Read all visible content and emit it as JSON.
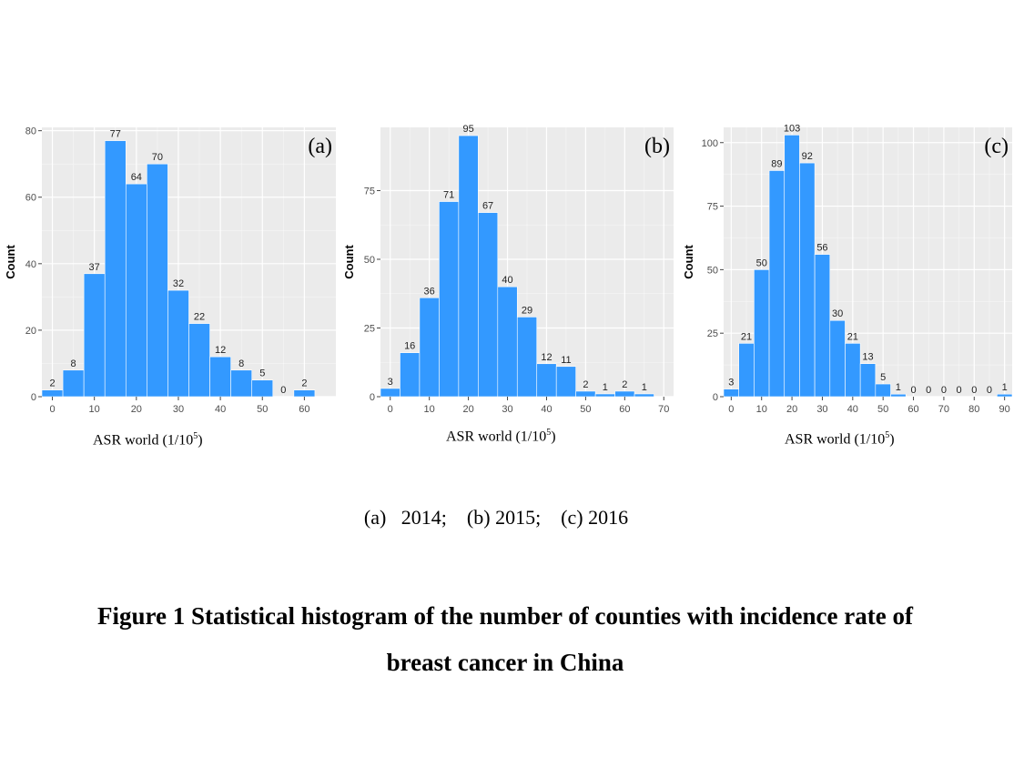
{
  "chart_data": [
    {
      "type": "bar",
      "panel_label": "(a)",
      "ylabel": "Count",
      "xlabel_main": "ASR world (1/10",
      "xlabel_sup": "5",
      "xlabel_end": ")",
      "bin_start": 0,
      "bin_width": 5,
      "values": [
        2,
        8,
        37,
        77,
        64,
        70,
        32,
        22,
        12,
        8,
        5,
        0,
        2
      ],
      "xticks": [
        0,
        10,
        20,
        30,
        40,
        50,
        60
      ],
      "yticks": [
        0,
        20,
        40,
        60,
        80
      ],
      "xlim": [
        -2.5,
        67.5
      ],
      "ylim": [
        0,
        81
      ],
      "bar_color": "#3399ff",
      "grid": true
    },
    {
      "type": "bar",
      "panel_label": "(b)",
      "ylabel": "Count",
      "xlabel_main": "ASR world (1/10",
      "xlabel_sup": "5",
      "xlabel_end": ")",
      "bin_start": 0,
      "bin_width": 5,
      "values": [
        3,
        16,
        36,
        71,
        95,
        67,
        40,
        29,
        12,
        11,
        2,
        1,
        2,
        1
      ],
      "xticks": [
        0,
        10,
        20,
        30,
        40,
        50,
        60,
        70
      ],
      "yticks": [
        0,
        25,
        50,
        75
      ],
      "xlim": [
        -2.5,
        72.5
      ],
      "ylim": [
        0,
        98
      ],
      "bar_color": "#3399ff",
      "grid": true
    },
    {
      "type": "bar",
      "panel_label": "(c)",
      "ylabel": "Count",
      "xlabel_main": "ASR world (1/10",
      "xlabel_sup": "5",
      "xlabel_end": ")",
      "bin_start": 0,
      "bin_width": 5,
      "values": [
        3,
        21,
        50,
        89,
        103,
        92,
        56,
        30,
        21,
        13,
        5,
        1,
        0,
        0,
        0,
        0,
        0,
        0,
        1
      ],
      "xticks": [
        0,
        10,
        20,
        30,
        40,
        50,
        60,
        70,
        80,
        90
      ],
      "yticks": [
        0,
        25,
        50,
        75,
        100
      ],
      "xlim": [
        -2.5,
        92.5
      ],
      "ylim": [
        0,
        106
      ],
      "bar_color": "#3399ff",
      "grid": true
    }
  ],
  "captions": {
    "subcaption": "(a)   2014;    (b) 2015;    (c) 2016",
    "figure_line1": "Figure 1   Statistical histogram of the number of counties with incidence rate of",
    "figure_line2": "breast cancer in China"
  }
}
